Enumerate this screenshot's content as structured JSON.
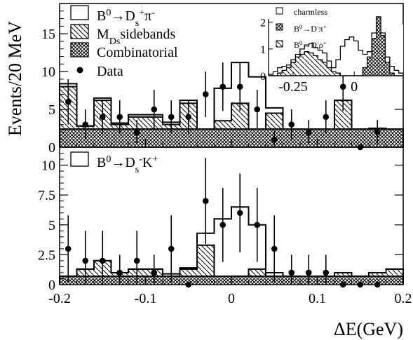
{
  "chart_data": {
    "type": "histogram",
    "xlabel": "ΔE(GeV)",
    "ylabel": "Events/20 MeV",
    "xlim": [
      -0.2,
      0.2
    ],
    "x_ticks": [
      "-0.2",
      "-0.1",
      "0",
      "0.1",
      "0.2"
    ],
    "bin_edges": [
      -0.2,
      -0.18,
      -0.16,
      -0.14,
      -0.12,
      -0.1,
      -0.08,
      -0.06,
      -0.04,
      -0.02,
      0.0,
      0.02,
      0.04,
      0.06,
      0.08,
      0.1,
      0.12,
      0.14,
      0.16,
      0.18,
      0.2
    ],
    "panels": [
      {
        "name": "top",
        "ylim": [
          0,
          19
        ],
        "y_ticks": [
          "0",
          "5",
          "10",
          "15"
        ],
        "legend": {
          "signal": [
            "B",
            "0",
            "→D",
            "s",
            "+",
            "π",
            "-"
          ],
          "sidebands": [
            "M",
            "Ds",
            "sidebands"
          ],
          "combinatorial": "Combinatorial",
          "data": "Data"
        },
        "series": [
          {
            "name": "Combinatorial",
            "values": [
              2.4,
              2.4,
              2.4,
              2.4,
              2.4,
              2.4,
              2.4,
              2.4,
              2.4,
              2.4,
              2.4,
              2.4,
              2.4,
              2.4,
              2.4,
              2.4,
              2.4,
              2.4,
              2.4,
              2.4
            ]
          },
          {
            "name": "MDs sidebands",
            "values": [
              8.0,
              2.8,
              6.2,
              3.0,
              4.0,
              4.0,
              3.0,
              5.8,
              1.5,
              3.5,
              5.8,
              1.5,
              4.5,
              1.5,
              1.8,
              1.8,
              6.2,
              1.5,
              2.5,
              2.0
            ]
          },
          {
            "name": "B0→Ds+π-",
            "values": [
              8.4,
              2.8,
              6.5,
              3.2,
              4.3,
              4.3,
              3.3,
              6.2,
              1.7,
              7.8,
              11.2,
              9.3,
              5.2,
              1.7,
              1.8,
              1.8,
              6.2,
              1.5,
              2.5,
              2.0
            ]
          },
          {
            "name": "Data",
            "x": [
              -0.19,
              -0.17,
              -0.15,
              -0.13,
              -0.11,
              -0.09,
              -0.07,
              -0.05,
              -0.03,
              -0.01,
              0.01,
              0.03,
              0.05,
              0.07,
              0.09,
              0.11,
              0.13,
              0.15,
              0.17
            ],
            "y": [
              6,
              3,
              4,
              4,
              2,
              5,
              4,
              4,
              7,
              8,
              8,
              5,
              1,
              3,
              2,
              4,
              8,
              0,
              2
            ],
            "err": [
              3.0,
              2.0,
              2.2,
              2.2,
              1.6,
              2.6,
              2.2,
              2.2,
              3.0,
              3.2,
              3.2,
              2.6,
              1.2,
              2.0,
              1.6,
              2.2,
              3.2,
              0,
              1.6
            ]
          }
        ],
        "inset": {
          "xlim": [
            -0.35,
            0.2
          ],
          "ylim": [
            0,
            2.7
          ],
          "x_ticks": [
            "-0.25",
            "0"
          ],
          "y_ticks": [
            "0",
            "1",
            "2"
          ],
          "legend": {
            "charmless": "charmless",
            "dpi": [
              "B",
              "0",
              "→D",
              "-",
              "π",
              "+"
            ],
            "drho": [
              "B",
              "0",
              "→D",
              "-",
              "ρ",
              "+"
            ]
          },
          "series": [
            {
              "name": "charmless",
              "values": [
                0.05,
                0.15,
                0.3,
                0.35,
                0.4,
                0.6,
                0.8,
                1.0,
                1.15,
                1.2,
                1.05,
                0.95,
                0.85,
                0.55,
                0.3,
                0.6,
                1.1,
                1.35,
                1.45,
                1.3,
                0.95,
                0.8,
                0.9,
                1.6,
                2.2,
                1.6,
                0.7,
                0.35,
                0.2,
                0.1
              ]
            },
            {
              "name": "B0→D-π+",
              "values": [
                0,
                0,
                0,
                0,
                0,
                0,
                0,
                0,
                0,
                0,
                0,
                0,
                0,
                0,
                0,
                0,
                0,
                0,
                0,
                0,
                0,
                0.3,
                0.7,
                1.4,
                2.2,
                1.5,
                0.5,
                0.1,
                0,
                0
              ]
            },
            {
              "name": "B0→D-ρ+",
              "values": [
                0,
                0,
                0.1,
                0.2,
                0.3,
                0.5,
                0.7,
                0.8,
                0.9,
                0.85,
                0.75,
                0.6,
                0.5,
                0.3,
                0.15,
                0.1,
                0,
                0,
                0,
                0,
                0,
                0,
                0,
                0,
                0,
                0,
                0,
                0,
                0,
                0
              ]
            }
          ]
        }
      },
      {
        "name": "bottom",
        "ylim": [
          0,
          11.5
        ],
        "y_ticks": [
          "0",
          "2.5",
          "5",
          "7.5",
          "10"
        ],
        "legend": {
          "signal": [
            "B",
            "0",
            "→D",
            "s",
            "-",
            "K",
            "+"
          ]
        },
        "series": [
          {
            "name": "Combinatorial",
            "values": [
              0.7,
              0.7,
              0.7,
              0.7,
              0.7,
              0.7,
              0.7,
              0.7,
              0.7,
              0.7,
              0.7,
              0.7,
              0.7,
              0.7,
              0.7,
              0.7,
              0.7,
              0.7,
              0.7,
              0.7
            ]
          },
          {
            "name": "MDs sidebands",
            "values": [
              0.7,
              1.3,
              2.0,
              1.0,
              1.3,
              1.3,
              0.7,
              1.3,
              3.3,
              0.3,
              0.7,
              1.3,
              0.7,
              0.7,
              0.3,
              0.7,
              1.0,
              0.7,
              1.0,
              1.3
            ]
          },
          {
            "name": "B0→Ds-K+",
            "values": [
              0.7,
              1.3,
              2.0,
              1.0,
              1.3,
              1.3,
              0.9,
              1.4,
              4.3,
              5.5,
              6.5,
              5.0,
              1.0,
              0.7,
              0.3,
              0.7,
              1.0,
              0.7,
              1.0,
              1.3
            ]
          },
          {
            "name": "Data",
            "x": [
              -0.19,
              -0.17,
              -0.15,
              -0.13,
              -0.11,
              -0.09,
              -0.07,
              -0.05,
              -0.03,
              -0.01,
              0.01,
              0.03,
              0.05,
              0.07,
              0.09,
              0.11,
              0.13,
              0.15,
              0.17
            ],
            "y": [
              3,
              2,
              2,
              1,
              2,
              1,
              3,
              0,
              7,
              5,
              6,
              5,
              3,
              1,
              1,
              1,
              0,
              0,
              0
            ],
            "err": [
              2.8,
              2.5,
              2.5,
              1.5,
              2.5,
              1.5,
              2.8,
              0,
              3.6,
              3.1,
              3.3,
              3.1,
              2.8,
              1.5,
              1.5,
              1.5,
              0,
              0,
              0
            ]
          }
        ]
      }
    ]
  }
}
